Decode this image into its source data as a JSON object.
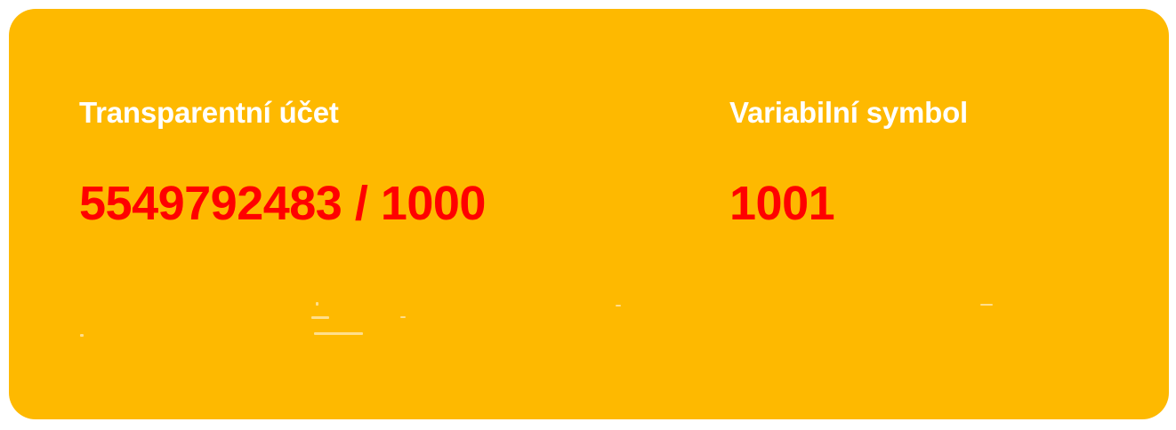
{
  "colors": {
    "card_background": "#FEB900",
    "label_text": "#FFFFFF",
    "value_text": "#FF0000"
  },
  "account": {
    "label": "Transparentní účet",
    "value": "5549792483 / 1000"
  },
  "variable_symbol": {
    "label": "Variabilní symbol",
    "value": "1001"
  }
}
